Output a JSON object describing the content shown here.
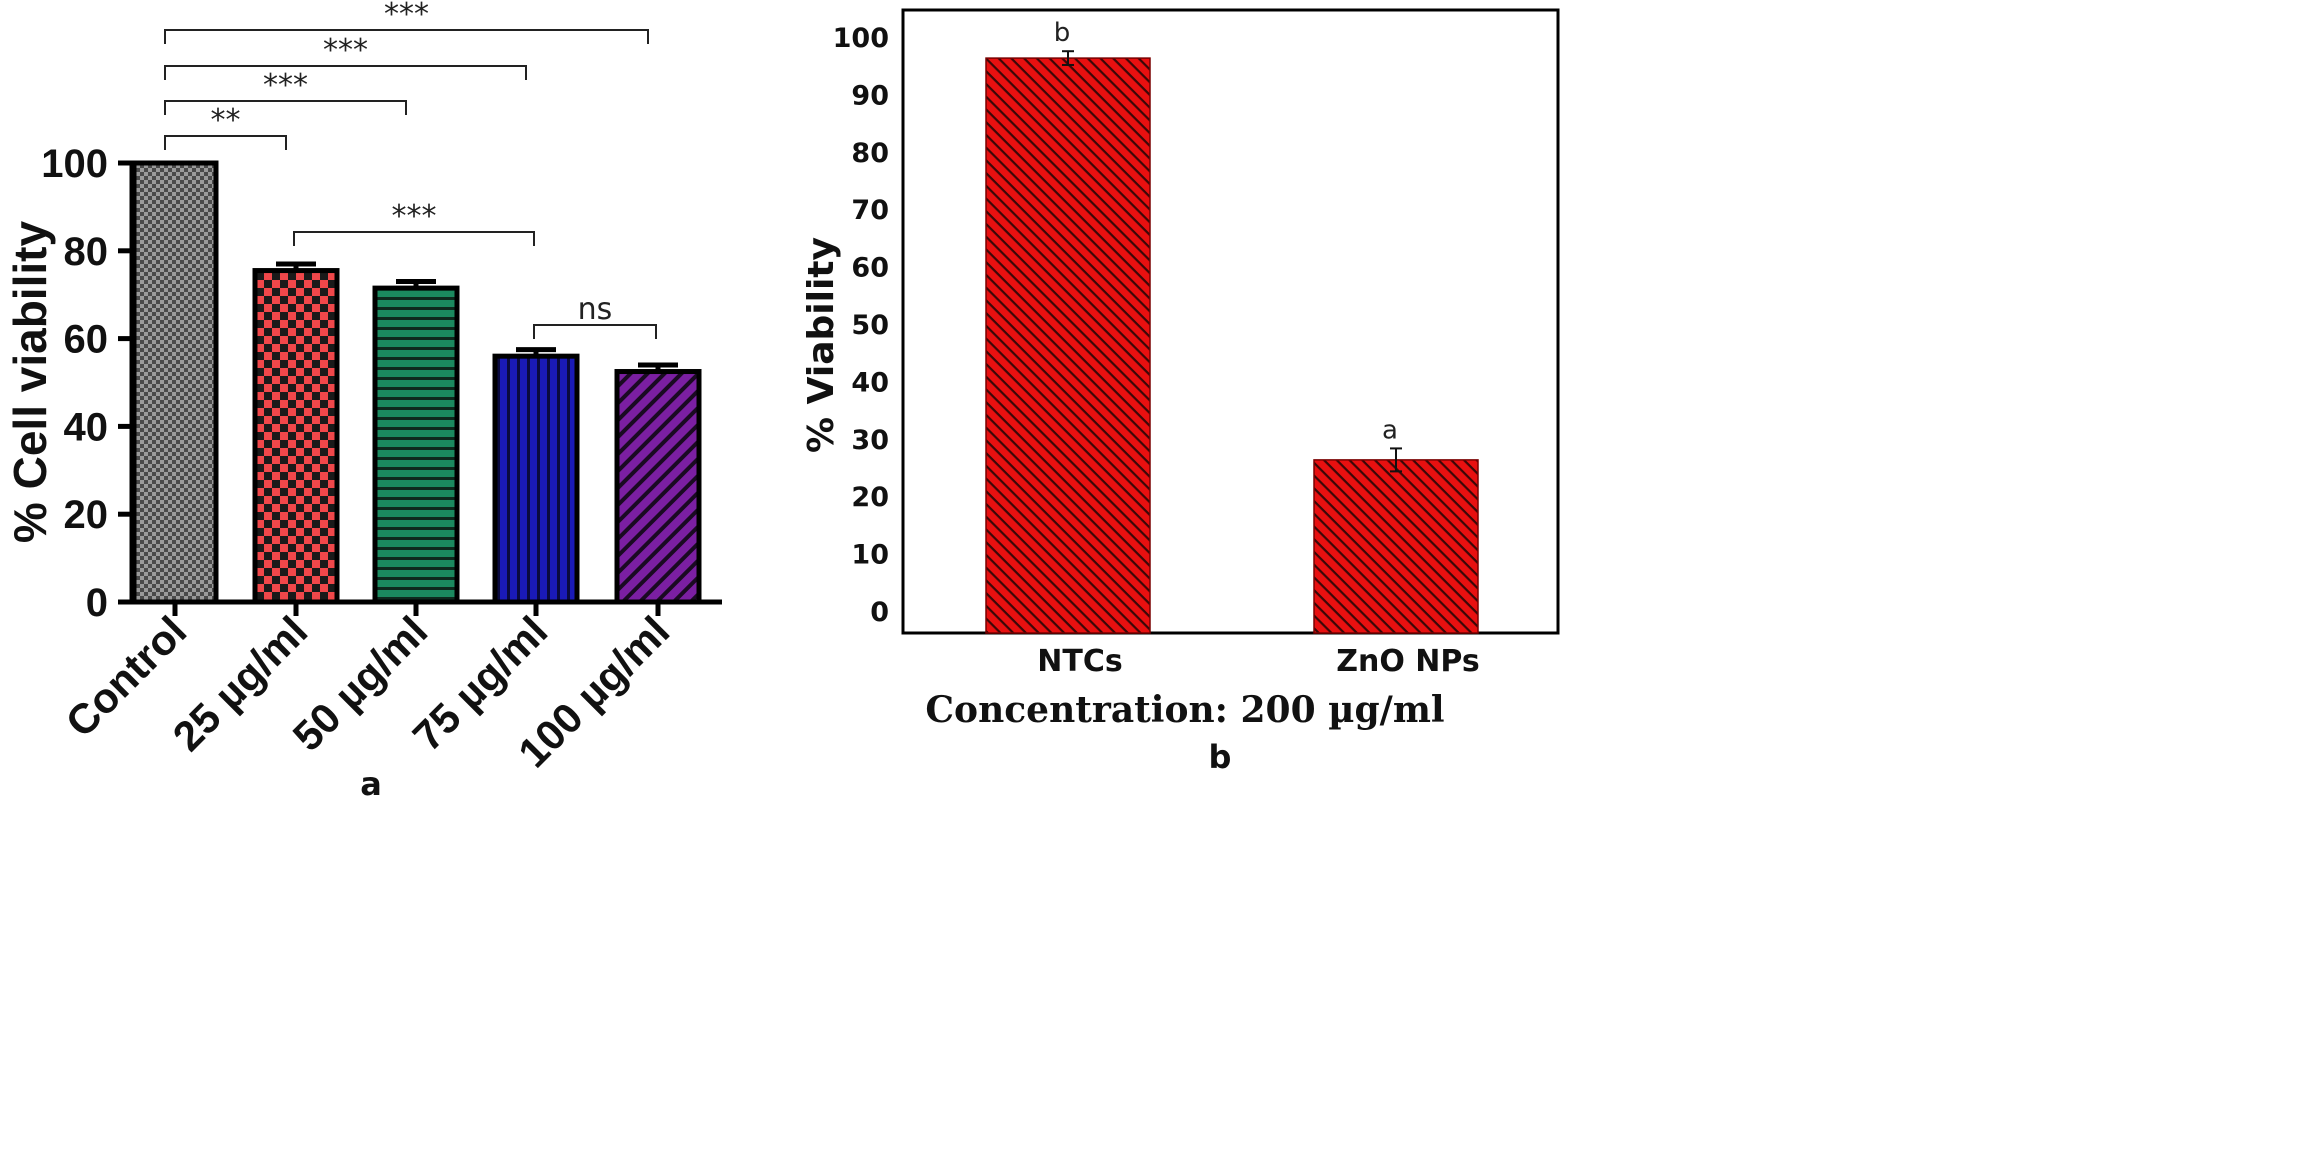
{
  "chart_data": [
    {
      "panel_label": "a",
      "type": "bar",
      "title": "",
      "xlabel": "",
      "ylabel": "% Cell viability",
      "ylim": [
        0,
        100
      ],
      "yticks": [
        "0",
        "20",
        "40",
        "60",
        "80",
        "100"
      ],
      "categories": [
        "Control",
        "25 µg/ml",
        "50 µg/ml",
        "75 µg/ml",
        "100 µg/ml"
      ],
      "values": [
        100,
        75.5,
        71.5,
        56,
        52.5
      ],
      "errors": [
        0,
        1.5,
        1.5,
        1.5,
        1.5
      ],
      "colors": [
        "#8a8a8a",
        "#f0474a",
        "#1b8a5f",
        "#1a1ab8",
        "#7b1fa2"
      ],
      "patterns": [
        "grid",
        "checker",
        "horizontal",
        "vertical",
        "diagonal"
      ],
      "significance": [
        {
          "from": 0,
          "to": 4,
          "label": "***"
        },
        {
          "from": 0,
          "to": 3,
          "label": "***"
        },
        {
          "from": 0,
          "to": 2,
          "label": "***"
        },
        {
          "from": 0,
          "to": 1,
          "label": "**"
        },
        {
          "from": 1,
          "to": 3,
          "label": "***"
        },
        {
          "from": 3,
          "to": 4,
          "label": "ns"
        }
      ]
    },
    {
      "panel_label": "b",
      "type": "bar",
      "title": "",
      "xlabel": "Concentration: 200 µg/ml",
      "ylabel": "% Viability",
      "ylim": [
        0,
        100
      ],
      "yticks": [
        "0",
        "10",
        "20",
        "30",
        "40",
        "50",
        "60",
        "70",
        "80",
        "90",
        "100"
      ],
      "categories": [
        "NTCs",
        "ZnO NPs"
      ],
      "values": [
        96.5,
        26.5
      ],
      "errors": [
        1.2,
        2.0
      ],
      "letters": [
        "b",
        "a"
      ],
      "colors": [
        "#e81010",
        "#e81010"
      ],
      "patterns": [
        "diagonal",
        "diagonal"
      ]
    }
  ]
}
